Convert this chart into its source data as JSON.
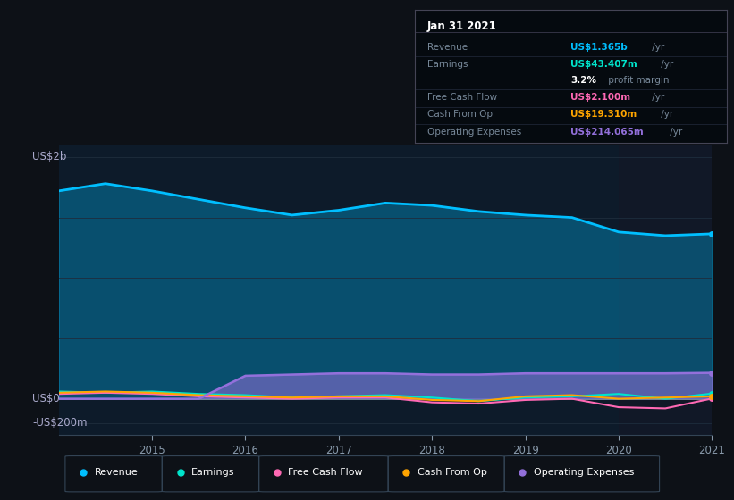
{
  "bg_color": "#0d1117",
  "plot_bg_color": "#0d1b2a",
  "title": "Jan 31 2021",
  "ylabel_top": "US$2b",
  "ylabel_zero": "US$0",
  "ylabel_bottom": "-US$200m",
  "x_years": [
    2014.0,
    2014.5,
    2015.0,
    2015.5,
    2016.0,
    2016.5,
    2017.0,
    2017.5,
    2018.0,
    2018.5,
    2019.0,
    2019.5,
    2020.0,
    2020.5,
    2021.0
  ],
  "revenue": [
    1.72,
    1.78,
    1.72,
    1.65,
    1.58,
    1.52,
    1.56,
    1.62,
    1.6,
    1.55,
    1.52,
    1.5,
    1.38,
    1.35,
    1.365
  ],
  "earnings": [
    0.06,
    0.05,
    0.06,
    0.04,
    0.03,
    0.01,
    0.02,
    0.03,
    0.01,
    -0.02,
    0.01,
    0.02,
    0.04,
    0.0,
    0.043
  ],
  "free_cash_flow": [
    0.04,
    0.05,
    0.04,
    0.02,
    0.01,
    0.0,
    0.01,
    0.01,
    -0.03,
    -0.04,
    -0.01,
    0.0,
    -0.07,
    -0.08,
    0.002
  ],
  "cash_from_op": [
    0.05,
    0.06,
    0.05,
    0.03,
    0.02,
    0.01,
    0.02,
    0.02,
    -0.01,
    -0.02,
    0.02,
    0.03,
    0.0,
    0.01,
    0.019
  ],
  "operating_expenses": [
    0.0,
    0.0,
    0.0,
    0.0,
    0.19,
    0.2,
    0.21,
    0.21,
    0.2,
    0.2,
    0.21,
    0.21,
    0.21,
    0.21,
    0.214
  ],
  "colors": {
    "revenue": "#00bfff",
    "earnings": "#00e5cc",
    "free_cash_flow": "#ff69b4",
    "cash_from_op": "#ffa500",
    "operating_expenses": "#9370db"
  },
  "shaded_right_start": 2020.0,
  "ylim": [
    -0.3,
    2.1
  ],
  "xticks": [
    2015,
    2016,
    2017,
    2018,
    2019,
    2020,
    2021
  ],
  "grid_yticks": [
    2.0,
    1.5,
    1.0,
    0.5,
    0.0,
    -0.2
  ],
  "info_rows": [
    {
      "label": "Revenue",
      "value": "US$1.365b",
      "suffix": " /yr",
      "color": "#00bfff",
      "bold": true
    },
    {
      "label": "Earnings",
      "value": "US$43.407m",
      "suffix": " /yr",
      "color": "#00e5cc",
      "bold": true
    },
    {
      "label": "",
      "value": "3.2%",
      "suffix": " profit margin",
      "color": "white",
      "bold": true
    },
    {
      "label": "Free Cash Flow",
      "value": "US$2.100m",
      "suffix": " /yr",
      "color": "#ff69b4",
      "bold": true
    },
    {
      "label": "Cash From Op",
      "value": "US$19.310m",
      "suffix": " /yr",
      "color": "#ffa500",
      "bold": true
    },
    {
      "label": "Operating Expenses",
      "value": "US$214.065m",
      "suffix": " /yr",
      "color": "#9370db",
      "bold": true
    }
  ],
  "legend_items": [
    {
      "label": "Revenue",
      "color": "#00bfff"
    },
    {
      "label": "Earnings",
      "color": "#00e5cc"
    },
    {
      "label": "Free Cash Flow",
      "color": "#ff69b4"
    },
    {
      "label": "Cash From Op",
      "color": "#ffa500"
    },
    {
      "label": "Operating Expenses",
      "color": "#9370db"
    }
  ]
}
